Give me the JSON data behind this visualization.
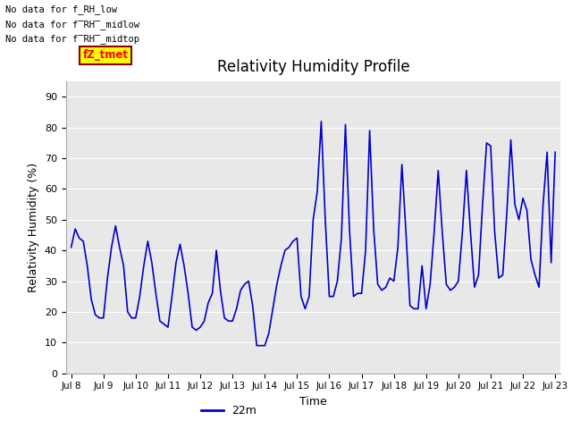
{
  "title": "Relativity Humidity Profile",
  "xlabel": "Time",
  "ylabel": "Relativity Humidity (%)",
  "legend_label": "22m",
  "legend_color": "#0000cc",
  "line_color": "#0000cc",
  "background_color": "#ffffff",
  "plot_bg_color": "#e8e8e8",
  "ylim": [
    0,
    95
  ],
  "yticks": [
    0,
    10,
    20,
    30,
    40,
    50,
    60,
    70,
    80,
    90
  ],
  "annotations": [
    "No data for f_RH_low",
    "No data for f̅RH̅_midlow",
    "No data for f̅RH̅_midtop"
  ],
  "annotation_box_text": "fZ_tmet",
  "x_tick_labels": [
    "Jul 8",
    "Jul 9",
    "Jul 10",
    "Jul 11",
    "Jul 12",
    "Jul 13",
    "Jul 14",
    "Jul 15",
    "Jul 16",
    "Jul 17",
    "Jul 18",
    "Jul 19",
    "Jul 20",
    "Jul 21",
    "Jul 22",
    "Jul 23"
  ],
  "x_tick_positions": [
    0,
    24,
    48,
    72,
    96,
    120,
    144,
    168,
    192,
    216,
    240,
    264,
    288,
    312,
    336,
    360
  ],
  "data_x": [
    0,
    3,
    6,
    9,
    12,
    15,
    18,
    21,
    24,
    27,
    30,
    33,
    36,
    39,
    42,
    45,
    48,
    51,
    54,
    57,
    60,
    63,
    66,
    69,
    72,
    75,
    78,
    81,
    84,
    87,
    90,
    93,
    96,
    99,
    102,
    105,
    108,
    111,
    114,
    117,
    120,
    123,
    126,
    129,
    132,
    135,
    138,
    141,
    144,
    147,
    150,
    153,
    156,
    159,
    162,
    165,
    168,
    171,
    174,
    177,
    180,
    183,
    186,
    189,
    192,
    195,
    198,
    201,
    204,
    207,
    210,
    213,
    216,
    219,
    222,
    225,
    228,
    231,
    234,
    237,
    240,
    243,
    246,
    249,
    252,
    255,
    258,
    261,
    264,
    267,
    270,
    273,
    276,
    279,
    282,
    285,
    288,
    291,
    294,
    297,
    300,
    303,
    306,
    309,
    312,
    315,
    318,
    321,
    324,
    327,
    330,
    333,
    336,
    339,
    342,
    345,
    348,
    351,
    354,
    357,
    360
  ],
  "data_y": [
    41,
    47,
    44,
    43,
    35,
    24,
    19,
    18,
    18,
    31,
    41,
    48,
    41,
    35,
    20,
    18,
    18,
    25,
    35,
    43,
    36,
    26,
    17,
    16,
    15,
    25,
    36,
    42,
    35,
    26,
    15,
    14,
    15,
    17,
    23,
    26,
    40,
    27,
    18,
    17,
    17,
    21,
    27,
    29,
    30,
    22,
    9,
    9,
    9,
    13,
    21,
    29,
    35,
    40,
    41,
    43,
    44,
    25,
    21,
    25,
    50,
    59,
    82,
    50,
    25,
    25,
    30,
    44,
    81,
    47,
    25,
    26,
    26,
    40,
    79,
    47,
    29,
    27,
    28,
    31,
    30,
    41,
    68,
    46,
    22,
    21,
    21,
    35,
    21,
    29,
    46,
    66,
    46,
    29,
    27,
    28,
    30,
    46,
    66,
    46,
    28,
    32,
    55,
    75,
    74,
    46,
    31,
    32,
    52,
    76,
    55,
    50,
    57,
    53,
    37,
    32,
    28,
    55,
    72,
    36,
    72
  ]
}
